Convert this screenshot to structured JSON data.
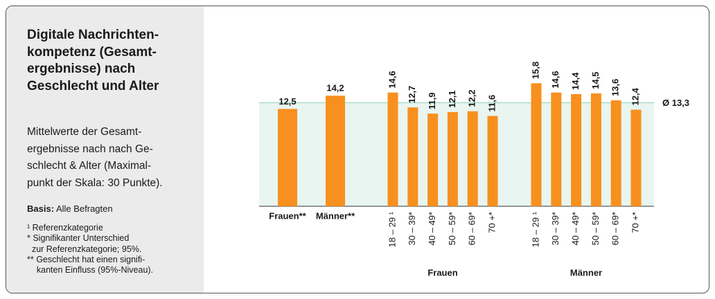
{
  "title_lines": [
    "Digitale Nachrichten-",
    "kompetenz (Gesamt-",
    "ergebnisse) nach",
    "Geschlecht und Alter"
  ],
  "subtitle_lines": [
    "Mittelwerte der Gesamt-",
    "ergebnisse nach nach Ge-",
    "schlecht & Alter (Maximal-",
    "punkt der Skala: 30 Punkte)."
  ],
  "basis": {
    "label": "Basis:",
    "text": "Alle Befragten"
  },
  "notes": [
    "¹ Referenzkategorie",
    "* Signifikanter Unterschied",
    "  zur Referenzkategorie; 95%.",
    "** Geschlecht hat einen signifi-",
    "    kanten Einfluss (95%-Niveau)."
  ],
  "chart_data": {
    "type": "bar",
    "color": "#f7901e",
    "ylim": [
      0,
      16
    ],
    "average": {
      "value": 13.3,
      "label": "Ø 13,3",
      "line_color": "#a6dcc7",
      "fill": "#e8f5f0"
    },
    "totals": {
      "categories": [
        "Frauen**",
        "Männer**"
      ],
      "values": [
        12.5,
        14.2
      ],
      "value_labels": [
        "12,5",
        "14,2"
      ]
    },
    "groups": [
      {
        "name": "Frauen",
        "categories": [
          "18 – 29 ¹",
          "30 – 39*",
          "40 – 49*",
          "50 – 59*",
          "60 – 69*",
          "70 +*"
        ],
        "values": [
          14.6,
          12.7,
          11.9,
          12.1,
          12.2,
          11.6
        ],
        "value_labels": [
          "14,6",
          "12,7",
          "11,9",
          "12,1",
          "12,2",
          "11,6"
        ]
      },
      {
        "name": "Männer",
        "categories": [
          "18 – 29 ¹",
          "30 – 39*",
          "40 – 49*",
          "50 – 59*",
          "60 – 69*",
          "70 +*"
        ],
        "values": [
          15.8,
          14.6,
          14.4,
          14.5,
          13.6,
          12.4
        ],
        "value_labels": [
          "15,8",
          "14,6",
          "14,4",
          "14,5",
          "13,6",
          "12,4"
        ]
      }
    ]
  }
}
